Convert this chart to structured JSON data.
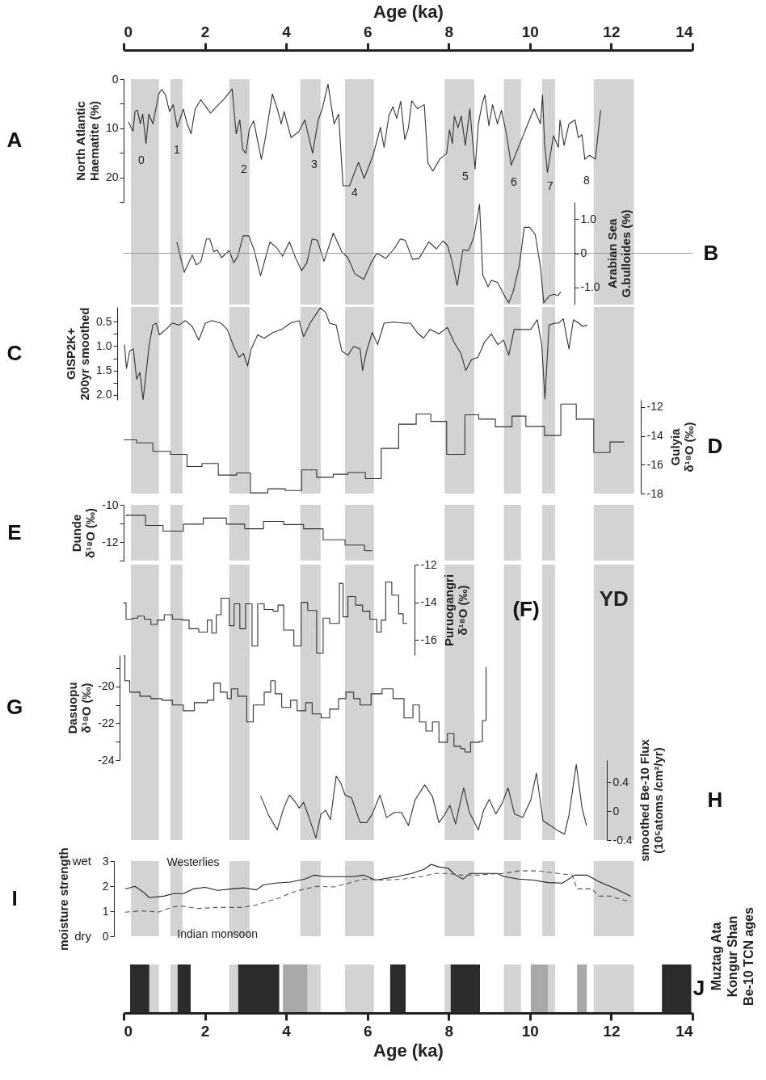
{
  "chart_data": [
    {
      "type": "line",
      "xlabel": "Age (ka)",
      "xlim": [
        0,
        14
      ],
      "xticks": [
        0,
        2,
        4,
        6,
        8,
        10,
        12,
        14
      ],
      "ylabel": "North Atlantic\nHaematite (%)",
      "ylim": [
        25,
        0
      ],
      "yticks": [
        0,
        {
          "value": 5,
          "label": null
        },
        10,
        {
          "value": 15,
          "label": null
        },
        20,
        {
          "value": 25,
          "label": null
        }
      ],
      "x": [
        0.12,
        0.23,
        0.28,
        0.34,
        0.41,
        0.47,
        0.55,
        0.62,
        0.72,
        0.87,
        0.94,
        1.03,
        1.13,
        1.22,
        1.32,
        1.37,
        1.47,
        1.56,
        1.66,
        1.76,
        1.9,
        2.14,
        2.33,
        2.48,
        2.67,
        2.77,
        2.86,
        2.93,
        3.01,
        3.09,
        3.2,
        3.39,
        3.49,
        3.66,
        3.78,
        3.88,
        3.95,
        4.12,
        4.31,
        4.46,
        4.65,
        4.79,
        4.89,
        5.03,
        5.18,
        5.29,
        5.4,
        5.56,
        5.78,
        5.92,
        6.14,
        6.32,
        6.41,
        6.53,
        6.63,
        6.72,
        6.82,
        6.92,
        7.01,
        7.09,
        7.23,
        7.4,
        7.49,
        7.61,
        7.78,
        7.95,
        8.02,
        8.09,
        8.14,
        8.23,
        8.31,
        8.41,
        8.52,
        8.65,
        8.73,
        8.82,
        8.89,
        8.99,
        9.08,
        9.2,
        9.3,
        9.42,
        9.54,
        10.1,
        10.26,
        10.31,
        10.36,
        10.43,
        10.58,
        10.7,
        10.74,
        10.84,
        10.96,
        11.11,
        11.19,
        11.28,
        11.35,
        11.47,
        11.61,
        11.74
      ],
      "values": [
        8.7,
        10.6,
        6.6,
        6.3,
        9.1,
        7.1,
        13.1,
        7.1,
        9.1,
        2.9,
        2.1,
        3.2,
        6.6,
        5.2,
        9.8,
        8.6,
        6.1,
        9.0,
        11.1,
        6.1,
        4.2,
        6.9,
        5.2,
        4.0,
        2.0,
        11.1,
        8.3,
        14.3,
        15.1,
        10.3,
        8.5,
        16.3,
        11.9,
        3.0,
        6.0,
        9.1,
        6.6,
        11.9,
        10.7,
        8.3,
        15.1,
        8.3,
        6.0,
        1.0,
        9.1,
        7.1,
        21.7,
        21.7,
        16.9,
        20.2,
        15.5,
        9.8,
        13.9,
        7.4,
        5.6,
        8.0,
        4.5,
        12.3,
        9.9,
        4.4,
        6.0,
        5.2,
        17.1,
        18.7,
        16.3,
        15.1,
        10.3,
        13.1,
        7.5,
        9.9,
        7.5,
        13.5,
        6.0,
        18.3,
        9.1,
        5.2,
        3.2,
        9.5,
        5.2,
        9.1,
        6.3,
        11.1,
        17.5,
        6.0,
        9.1,
        3.2,
        13.1,
        19.0,
        11.5,
        13.9,
        8.3,
        13.5,
        9.1,
        8.3,
        11.9,
        11.3,
        16.3,
        15.5,
        16.3,
        6.3
      ],
      "color": "#333333",
      "bands": [
        {
          "axis": "x",
          "from": 0.18,
          "to": 0.87,
          "color": "#d3d3d3"
        },
        {
          "axis": "x",
          "from": 1.15,
          "to": 1.45,
          "color": "#d3d3d3"
        },
        {
          "axis": "x",
          "from": 2.6,
          "to": 3.1,
          "color": "#d3d3d3"
        },
        {
          "axis": "x",
          "from": 4.35,
          "to": 4.85,
          "color": "#d3d3d3"
        },
        {
          "axis": "x",
          "from": 5.45,
          "to": 6.16,
          "color": "#d3d3d3"
        },
        {
          "axis": "x",
          "from": 7.9,
          "to": 8.63,
          "color": "#d3d3d3"
        },
        {
          "axis": "x",
          "from": 9.36,
          "to": 9.78,
          "color": "#d3d3d3"
        },
        {
          "axis": "x",
          "from": 10.3,
          "to": 10.62,
          "color": "#d3d3d3"
        },
        {
          "axis": "x",
          "from": 11.57,
          "to": 12.56,
          "color": "#d3d3d3"
        }
      ],
      "annotations": [
        "A",
        "0",
        "1",
        "2",
        "3",
        "4",
        "5",
        "6",
        "7",
        "8"
      ]
    },
    {
      "type": "line",
      "xlim": [
        0,
        14
      ],
      "tick_labels": "y",
      "ylabel": "Arabian Sea\nG.bulloides (%)",
      "ylim": [
        -1.5,
        1.5
      ],
      "yticks": [
        {
          "value": 1,
          "label": "1.0"
        },
        0,
        {
          "value": -1,
          "label": "-1.0"
        }
      ],
      "x": [
        1.31,
        1.49,
        1.69,
        1.79,
        1.9,
        2.04,
        2.12,
        2.22,
        2.3,
        2.41,
        2.6,
        2.71,
        2.81,
        2.94,
        3.08,
        3.21,
        3.37,
        3.6,
        3.76,
        3.91,
        4.08,
        4.23,
        4.38,
        4.51,
        4.64,
        4.77,
        4.93,
        5.16,
        5.37,
        5.52,
        5.69,
        5.91,
        6.09,
        6.23,
        6.45,
        6.66,
        6.81,
        6.93,
        7.11,
        7.27,
        7.51,
        7.7,
        7.86,
        7.97,
        8.08,
        8.21,
        8.35,
        8.49,
        8.62,
        8.76,
        8.84,
        8.97,
        9.05,
        9.2,
        9.4,
        9.48,
        9.59,
        9.74,
        9.86,
        9.99,
        10.13,
        10.26,
        10.34,
        10.48,
        10.6,
        10.69,
        10.76
      ],
      "values": [
        0.33,
        -0.56,
        -0.05,
        -0.34,
        -0.25,
        0.42,
        0.42,
        0.04,
        0.1,
        -0.13,
        0.08,
        -0.28,
        -0.09,
        0.51,
        0.51,
        0.1,
        -0.66,
        0.33,
        0.17,
        -0.09,
        0.33,
        -0.13,
        -0.51,
        -0.28,
        0.42,
        0.38,
        -0.24,
        0.59,
        0.04,
        -0.13,
        -0.6,
        -0.76,
        -0.28,
        0,
        -0.15,
        0.13,
        0.42,
        0.38,
        -0.18,
        -0.15,
        0.33,
        0.13,
        0.36,
        0.23,
        -0.22,
        -0.94,
        0.1,
        0.08,
        0.48,
        1.43,
        -0.64,
        -0.98,
        -0.79,
        -0.85,
        -1.3,
        -1.45,
        -1.11,
        -0.34,
        0.76,
        0.76,
        0.55,
        -0.41,
        -1.45,
        -1.24,
        -1.2,
        -1.24,
        -1.13
      ],
      "color": "#333333",
      "ref_lines": [
        {
          "axis": "y",
          "value": 0,
          "color": "#999999"
        }
      ],
      "bands": [
        {
          "axis": "x",
          "from": 0.18,
          "to": 0.87,
          "color": "#d3d3d3"
        },
        {
          "axis": "x",
          "from": 1.15,
          "to": 1.45,
          "color": "#d3d3d3"
        },
        {
          "axis": "x",
          "from": 2.6,
          "to": 3.1,
          "color": "#d3d3d3"
        },
        {
          "axis": "x",
          "from": 4.35,
          "to": 4.85,
          "color": "#d3d3d3"
        },
        {
          "axis": "x",
          "from": 5.45,
          "to": 6.16,
          "color": "#d3d3d3"
        },
        {
          "axis": "x",
          "from": 7.9,
          "to": 8.63,
          "color": "#d3d3d3"
        },
        {
          "axis": "x",
          "from": 9.36,
          "to": 9.78,
          "color": "#d3d3d3"
        },
        {
          "axis": "x",
          "from": 10.3,
          "to": 10.62,
          "color": "#d3d3d3"
        },
        {
          "axis": "x",
          "from": 11.57,
          "to": 12.56,
          "color": "#d3d3d3"
        }
      ],
      "annotations": [
        "B"
      ]
    },
    {
      "type": "line",
      "xlim": [
        0,
        14
      ],
      "tick_labels": "y",
      "ylabel": "GISP2K+\n200yr smoothed",
      "ylim": [
        2.1,
        0.2
      ],
      "yticks": [
        {
          "value": 0.5,
          "label": "0.5"
        },
        {
          "value": 0.75,
          "label": null
        },
        {
          "value": 1,
          "label": "1.0"
        },
        {
          "value": 1.25,
          "label": null
        },
        {
          "value": 1.5,
          "label": "1.5"
        },
        {
          "value": 1.75,
          "label": null
        },
        {
          "value": 2,
          "label": "2.0"
        }
      ],
      "x": [
        0.02,
        0.07,
        0.15,
        0.24,
        0.32,
        0.4,
        0.48,
        0.56,
        0.63,
        0.72,
        0.8,
        0.88,
        1.04,
        1.2,
        1.36,
        1.52,
        1.69,
        1.85,
        2.01,
        2.17,
        2.39,
        2.55,
        2.71,
        2.84,
        2.95,
        3.05,
        3.14,
        3.3,
        3.46,
        3.68,
        3.89,
        4.11,
        4.32,
        4.43,
        4.59,
        4.75,
        4.84,
        4.97,
        5.07,
        5.23,
        5.37,
        5.52,
        5.66,
        5.82,
        5.88,
        5.98,
        6.12,
        6.25,
        6.41,
        6.63,
        6.9,
        7.06,
        7.22,
        7.38,
        7.54,
        7.76,
        7.97,
        8.13,
        8.3,
        8.42,
        8.56,
        8.72,
        8.88,
        9.05,
        9.21,
        9.35,
        9.48,
        9.61,
        9.8,
        10.02,
        10.18,
        10.29,
        10.37,
        10.47,
        10.61,
        10.71,
        10.82,
        10.96,
        11.07,
        11.2,
        11.3,
        11.41
      ],
      "values": [
        0.97,
        1.46,
        1.1,
        1.06,
        1.68,
        1.54,
        2.1,
        1.5,
        0.97,
        0.57,
        0.53,
        0.77,
        0.66,
        0.53,
        0.57,
        0.48,
        0.6,
        0.88,
        0.53,
        0.48,
        0.53,
        0.66,
        1.01,
        1.23,
        1.15,
        1.41,
        1.06,
        0.77,
        0.84,
        0.72,
        0.66,
        0.53,
        0.48,
        0.81,
        0.53,
        0.33,
        0.22,
        0.31,
        0.53,
        0.57,
        1.1,
        1.19,
        1.01,
        1.06,
        1.5,
        1.1,
        0.72,
        0.97,
        0.53,
        0.51,
        0.53,
        0.53,
        0.72,
        0.84,
        0.66,
        0.75,
        0.62,
        0.92,
        1.15,
        1.5,
        1.28,
        1.23,
        0.92,
        0.75,
        0.97,
        0.88,
        1.19,
        0.66,
        0.66,
        0.66,
        0.46,
        0.97,
        2.08,
        0.57,
        0.53,
        0.53,
        0.44,
        1.06,
        0.46,
        0.53,
        0.6,
        0.57
      ],
      "color": "#333333",
      "bands": [
        {
          "axis": "x",
          "from": 0.18,
          "to": 0.87,
          "color": "#d3d3d3"
        },
        {
          "axis": "x",
          "from": 1.15,
          "to": 1.45,
          "color": "#d3d3d3"
        },
        {
          "axis": "x",
          "from": 2.6,
          "to": 3.1,
          "color": "#d3d3d3"
        },
        {
          "axis": "x",
          "from": 4.35,
          "to": 4.85,
          "color": "#d3d3d3"
        },
        {
          "axis": "x",
          "from": 5.45,
          "to": 6.16,
          "color": "#d3d3d3"
        },
        {
          "axis": "x",
          "from": 7.9,
          "to": 8.63,
          "color": "#d3d3d3"
        },
        {
          "axis": "x",
          "from": 9.36,
          "to": 9.78,
          "color": "#d3d3d3"
        },
        {
          "axis": "x",
          "from": 10.3,
          "to": 10.62,
          "color": "#d3d3d3"
        },
        {
          "axis": "x",
          "from": 11.57,
          "to": 12.56,
          "color": "#d3d3d3"
        }
      ],
      "annotations": [
        "C"
      ]
    },
    {
      "type": "step",
      "xlim": [
        0,
        14
      ],
      "tick_labels": "y",
      "ylabel": "Gulyia\nδ¹⁸O (‰)",
      "ylim": [
        -18,
        -11.5
      ],
      "yticks": [
        -12,
        -14,
        -16,
        -18
      ],
      "x": [
        0,
        0.32,
        0.72,
        1.15,
        1.56,
        1.93,
        2.33,
        2.78,
        3.12,
        3.55,
        3.98,
        4.38,
        4.75,
        5.16,
        5.52,
        5.95,
        6.34,
        6.77,
        7.2,
        7.56,
        7.95,
        8.4,
        8.74,
        9.15,
        9.56,
        9.9,
        10.36,
        10.76,
        11.14,
        11.57,
        11.97,
        12.32
      ],
      "values": [
        -14.27,
        -14.48,
        -15.07,
        -15.28,
        -16.12,
        -15.91,
        -16.72,
        -16.57,
        -17.95,
        -17.67,
        -17.79,
        -16.36,
        -16.87,
        -16.66,
        -16.54,
        -16.96,
        -14.87,
        -13.19,
        -12.48,
        -12.99,
        -15.28,
        -12.54,
        -12.84,
        -13.37,
        -12.63,
        -13.34,
        -13.97,
        -11.79,
        -12.84,
        -15.16,
        -14.42,
        -14.42
      ],
      "color": "#333333",
      "bands": [
        {
          "axis": "x",
          "from": 0.18,
          "to": 0.87,
          "color": "#d3d3d3"
        },
        {
          "axis": "x",
          "from": 1.15,
          "to": 1.45,
          "color": "#d3d3d3"
        },
        {
          "axis": "x",
          "from": 2.6,
          "to": 3.1,
          "color": "#d3d3d3"
        },
        {
          "axis": "x",
          "from": 4.35,
          "to": 4.85,
          "color": "#d3d3d3"
        },
        {
          "axis": "x",
          "from": 5.45,
          "to": 6.16,
          "color": "#d3d3d3"
        },
        {
          "axis": "x",
          "from": 7.9,
          "to": 8.63,
          "color": "#d3d3d3"
        },
        {
          "axis": "x",
          "from": 9.36,
          "to": 9.78,
          "color": "#d3d3d3"
        },
        {
          "axis": "x",
          "from": 10.3,
          "to": 10.62,
          "color": "#d3d3d3"
        },
        {
          "axis": "x",
          "from": 11.57,
          "to": 12.56,
          "color": "#d3d3d3"
        }
      ],
      "annotations": [
        "D"
      ]
    },
    {
      "type": "step",
      "xlim": [
        0,
        14
      ],
      "tick_labels": "y",
      "ylabel": "Dunde\nδ¹⁸O (‰)",
      "ylim": [
        -13,
        -10
      ],
      "yticks": [
        -10,
        {
          "value": -11,
          "label": null
        },
        -12,
        {
          "value": -13,
          "label": null
        }
      ],
      "x": [
        0.05,
        0.54,
        0.97,
        1.47,
        1.96,
        2.53,
        2.98,
        3.44,
        3.94,
        4.43,
        4.91,
        5.45,
        5.93,
        6.12
      ],
      "values": [
        -10.56,
        -11.11,
        -11.41,
        -11.04,
        -10.71,
        -11.04,
        -11.29,
        -10.89,
        -11.06,
        -11.29,
        -11.88,
        -12.16,
        -12.47,
        -12.47
      ],
      "color": "#333333",
      "bands": [
        {
          "axis": "x",
          "from": 0.18,
          "to": 0.87,
          "color": "#d3d3d3"
        },
        {
          "axis": "x",
          "from": 1.15,
          "to": 1.45,
          "color": "#d3d3d3"
        },
        {
          "axis": "x",
          "from": 2.6,
          "to": 3.1,
          "color": "#d3d3d3"
        },
        {
          "axis": "x",
          "from": 4.35,
          "to": 4.85,
          "color": "#d3d3d3"
        },
        {
          "axis": "x",
          "from": 5.45,
          "to": 6.16,
          "color": "#d3d3d3"
        },
        {
          "axis": "x",
          "from": 7.9,
          "to": 8.63,
          "color": "#d3d3d3"
        },
        {
          "axis": "x",
          "from": 9.36,
          "to": 9.78,
          "color": "#d3d3d3"
        },
        {
          "axis": "x",
          "from": 10.3,
          "to": 10.62,
          "color": "#d3d3d3"
        },
        {
          "axis": "x",
          "from": 11.57,
          "to": 12.56,
          "color": "#d3d3d3"
        }
      ],
      "annotations": [
        "E"
      ]
    },
    {
      "type": "step",
      "xlim": [
        0,
        14
      ],
      "tick_labels": "y",
      "ylabel": "Puruogangri\nδ¹⁸O (‰)",
      "ylim": [
        -16.8,
        -12
      ],
      "yticks": [
        -12,
        -14,
        -16
      ],
      "x": [
        0,
        0.06,
        0.22,
        0.35,
        0.51,
        0.67,
        0.83,
        1.0,
        1.2,
        1.44,
        1.61,
        1.85,
        2.06,
        2.17,
        2.28,
        2.4,
        2.6,
        2.72,
        2.86,
        3.0,
        3.16,
        3.3,
        3.46,
        3.68,
        3.8,
        3.94,
        4.08,
        4.19,
        4.37,
        4.53,
        4.75,
        4.91,
        5.07,
        5.31,
        5.4,
        5.52,
        5.71,
        5.88,
        6.06,
        6.23,
        6.34,
        6.45,
        6.6,
        6.77,
        6.88,
        6.98
      ],
      "values": [
        -14.03,
        -14.89,
        -14.84,
        -14.73,
        -14.89,
        -15.17,
        -14.94,
        -14.66,
        -14.89,
        -14.94,
        -15.4,
        -15.58,
        -14.94,
        -15.63,
        -14.66,
        -13.78,
        -15.24,
        -14.08,
        -15.4,
        -14.08,
        -16.32,
        -14.08,
        -14.38,
        -14.47,
        -14.15,
        -15.47,
        -15.47,
        -16.32,
        -14.01,
        -14.43,
        -16.69,
        -14.84,
        -15.12,
        -12.99,
        -14.77,
        -13.69,
        -14.15,
        -14.47,
        -14.89,
        -15.58,
        -14.94,
        -12.92,
        -13.62,
        -14.61,
        -15.12,
        -15.12
      ],
      "color": "#333333",
      "bands": [
        {
          "axis": "x",
          "from": 0.18,
          "to": 0.87,
          "color": "#d3d3d3"
        },
        {
          "axis": "x",
          "from": 1.15,
          "to": 1.45,
          "color": "#d3d3d3"
        },
        {
          "axis": "x",
          "from": 2.6,
          "to": 3.1,
          "color": "#d3d3d3"
        },
        {
          "axis": "x",
          "from": 4.35,
          "to": 4.85,
          "color": "#d3d3d3"
        },
        {
          "axis": "x",
          "from": 5.45,
          "to": 6.16,
          "color": "#d3d3d3"
        },
        {
          "axis": "x",
          "from": 7.9,
          "to": 8.63,
          "color": "#d3d3d3"
        },
        {
          "axis": "x",
          "from": 9.36,
          "to": 9.78,
          "color": "#d3d3d3"
        },
        {
          "axis": "x",
          "from": 10.3,
          "to": 10.62,
          "color": "#d3d3d3"
        },
        {
          "axis": "x",
          "from": 11.57,
          "to": 12.56,
          "color": "#d3d3d3",
          "label": "YD"
        }
      ],
      "annotations": [
        "(F)"
      ]
    },
    {
      "type": "step",
      "xlim": [
        0,
        14
      ],
      "tick_labels": "y",
      "ylabel": "Dasuopu\nδ¹⁸O (‰)",
      "ylim": [
        -24,
        -18.3
      ],
      "yticks": [
        {
          "value": -19,
          "label": null
        },
        -20,
        {
          "value": -21,
          "label": null
        },
        -22,
        {
          "value": -23,
          "label": null
        },
        -24
      ],
      "x": [
        0,
        0.03,
        0.15,
        0.4,
        0.67,
        0.94,
        1.2,
        1.47,
        1.74,
        2.06,
        2.22,
        2.38,
        2.55,
        2.65,
        2.81,
        3.03,
        3.19,
        3.46,
        3.62,
        3.73,
        3.89,
        4.11,
        4.27,
        4.48,
        4.64,
        4.86,
        5.07,
        5.29,
        5.47,
        5.66,
        5.82,
        6.09,
        6.36,
        6.63,
        6.9,
        7.12,
        7.28,
        7.44,
        7.6,
        7.76,
        7.97,
        8.13,
        8.3,
        8.4,
        8.54,
        8.75,
        8.83,
        8.92
      ],
      "values": [
        -18.33,
        -19.69,
        -20.31,
        -20.53,
        -20.66,
        -20.75,
        -21.01,
        -21.32,
        -20.88,
        -20.75,
        -19.82,
        -20.31,
        -20.66,
        -20.13,
        -20.53,
        -21.93,
        -21.01,
        -20.31,
        -19.69,
        -20.4,
        -21.14,
        -20.75,
        -21.32,
        -20.88,
        -21.49,
        -21.71,
        -21.23,
        -20.66,
        -20.31,
        -20.66,
        -21.01,
        -20.4,
        -20.13,
        -20.66,
        -21.71,
        -21.01,
        -21.93,
        -22.42,
        -21.93,
        -23.03,
        -22.55,
        -23.25,
        -23.38,
        -23.56,
        -23.03,
        -22.99,
        -21.85,
        -18.95
      ],
      "color": "#333333",
      "bands": [
        {
          "axis": "x",
          "from": 0.18,
          "to": 0.87,
          "color": "#d3d3d3"
        },
        {
          "axis": "x",
          "from": 1.15,
          "to": 1.45,
          "color": "#d3d3d3"
        },
        {
          "axis": "x",
          "from": 2.6,
          "to": 3.1,
          "color": "#d3d3d3"
        },
        {
          "axis": "x",
          "from": 4.35,
          "to": 4.85,
          "color": "#d3d3d3"
        },
        {
          "axis": "x",
          "from": 5.45,
          "to": 6.16,
          "color": "#d3d3d3"
        },
        {
          "axis": "x",
          "from": 7.9,
          "to": 8.63,
          "color": "#d3d3d3"
        },
        {
          "axis": "x",
          "from": 9.36,
          "to": 9.78,
          "color": "#d3d3d3"
        },
        {
          "axis": "x",
          "from": 10.3,
          "to": 10.62,
          "color": "#d3d3d3"
        },
        {
          "axis": "x",
          "from": 11.57,
          "to": 12.56,
          "color": "#d3d3d3"
        }
      ],
      "annotations": [
        "G"
      ]
    },
    {
      "type": "line",
      "xlim": [
        0,
        14
      ],
      "tick_labels": "y",
      "ylabel": "smoothed Be-10 Flux\n(10⁵atoms /cm²/yr)",
      "ylim": [
        -0.4,
        0.7
      ],
      "yticks": [
        -0.4,
        0,
        0.4
      ],
      "x": [
        3.37,
        3.57,
        3.78,
        3.94,
        4.08,
        4.23,
        4.32,
        4.43,
        4.59,
        4.73,
        4.86,
        4.97,
        5.09,
        5.23,
        5.34,
        5.45,
        5.61,
        5.82,
        5.98,
        6.12,
        6.31,
        6.47,
        6.66,
        6.84,
        7.01,
        7.17,
        7.41,
        7.6,
        7.76,
        7.89,
        8.03,
        8.17,
        8.27,
        8.37,
        8.51,
        8.73,
        8.86,
        9.0,
        9.16,
        9.32,
        9.46,
        9.62,
        9.82,
        10.02,
        10.16,
        10.32,
        10.5,
        10.66,
        10.85,
        10.96,
        11.14,
        11.28,
        11.39
      ],
      "values": [
        0.21,
        -0.06,
        -0.26,
        0.04,
        0.22,
        0.12,
        0.04,
        0.12,
        -0.13,
        -0.37,
        -0.04,
        0.01,
        -0.12,
        0.48,
        0.39,
        0.22,
        0.18,
        -0.16,
        -0.16,
        -0.04,
        0.22,
        -0.09,
        -0.02,
        -0.02,
        -0.2,
        0.15,
        0.36,
        0.2,
        -0.16,
        -0.06,
        0.08,
        -0.18,
        0.08,
        0.32,
        -0.02,
        -0.26,
        0.01,
        0.16,
        -0.04,
        0.11,
        0.32,
        -0.04,
        -0.09,
        0.15,
        0.52,
        -0.13,
        -0.2,
        -0.26,
        -0.32,
        -0.06,
        0.64,
        0.05,
        -0.2
      ],
      "color": "#333333",
      "bands": [
        {
          "axis": "x",
          "from": 0.18,
          "to": 0.87,
          "color": "#d3d3d3"
        },
        {
          "axis": "x",
          "from": 1.15,
          "to": 1.45,
          "color": "#d3d3d3"
        },
        {
          "axis": "x",
          "from": 2.6,
          "to": 3.1,
          "color": "#d3d3d3"
        },
        {
          "axis": "x",
          "from": 4.35,
          "to": 4.85,
          "color": "#d3d3d3"
        },
        {
          "axis": "x",
          "from": 5.45,
          "to": 6.16,
          "color": "#d3d3d3"
        },
        {
          "axis": "x",
          "from": 7.9,
          "to": 8.63,
          "color": "#d3d3d3"
        },
        {
          "axis": "x",
          "from": 9.36,
          "to": 9.78,
          "color": "#d3d3d3"
        },
        {
          "axis": "x",
          "from": 10.3,
          "to": 10.62,
          "color": "#d3d3d3"
        },
        {
          "axis": "x",
          "from": 11.57,
          "to": 12.56,
          "color": "#d3d3d3"
        }
      ],
      "annotations": [
        "H"
      ]
    },
    {
      "type": "line",
      "xlim": [
        0,
        14
      ],
      "tick_labels": "y",
      "ylabel": "moisture strength",
      "ylim": [
        0,
        3
      ],
      "yticks": [
        0,
        1,
        2,
        3
      ],
      "series": [
        {
          "name": "Westerlies",
          "color": "#222222",
          "line_style": "solid",
          "x": [
            0.04,
            0.28,
            0.51,
            0.63,
            0.99,
            1.23,
            1.47,
            1.71,
            2.01,
            2.31,
            2.67,
            2.97,
            3.27,
            3.44,
            3.74,
            4.1,
            4.46,
            4.7,
            4.94,
            5.3,
            5.66,
            5.9,
            6.2,
            6.5,
            6.73,
            7.09,
            7.39,
            7.57,
            7.75,
            7.99,
            8.17,
            8.35,
            8.53,
            8.89,
            9.19,
            9.37,
            9.72,
            10.08,
            10.44,
            10.8,
            11.1,
            11.4,
            11.7,
            12.12,
            12.48
          ],
          "values": [
            1.89,
            1.99,
            1.73,
            1.54,
            1.6,
            1.7,
            1.7,
            1.89,
            1.95,
            1.83,
            1.89,
            1.93,
            1.85,
            2.05,
            2.12,
            2.16,
            2.28,
            2.44,
            2.38,
            2.38,
            2.38,
            2.44,
            2.24,
            2.32,
            2.38,
            2.51,
            2.67,
            2.87,
            2.77,
            2.71,
            2.44,
            2.28,
            2.51,
            2.51,
            2.51,
            2.38,
            2.28,
            2.24,
            2.14,
            2.12,
            2.44,
            2.44,
            2.18,
            1.89,
            1.6
          ]
        },
        {
          "name": "Indian monsoon",
          "color": "#555555",
          "line_style": "dashed",
          "x": [
            0.04,
            0.39,
            0.87,
            1.17,
            1.41,
            1.83,
            2.31,
            2.91,
            3.27,
            3.56,
            3.86,
            4.1,
            4.46,
            4.76,
            5.18,
            5.54,
            5.9,
            6.38,
            6.86,
            7.33,
            7.69,
            7.99,
            8.29,
            8.71,
            9.01,
            9.37,
            9.72,
            10.2,
            10.68,
            11.04,
            11.16,
            11.52,
            11.7,
            12.0,
            12.24,
            12.48
          ],
          "values": [
            0.96,
            1.01,
            0.97,
            1.15,
            1.21,
            1.11,
            1.15,
            1.15,
            1.25,
            1.4,
            1.54,
            1.73,
            1.89,
            1.99,
            1.97,
            2.12,
            2.28,
            2.24,
            2.28,
            2.38,
            2.51,
            2.51,
            2.44,
            2.44,
            2.48,
            2.51,
            2.61,
            2.61,
            2.51,
            2.44,
            1.89,
            1.89,
            1.6,
            1.6,
            1.46,
            1.4
          ]
        }
      ],
      "bands": [
        {
          "axis": "x",
          "from": 0.18,
          "to": 0.87,
          "color": "#d3d3d3"
        },
        {
          "axis": "x",
          "from": 1.15,
          "to": 1.45,
          "color": "#d3d3d3"
        },
        {
          "axis": "x",
          "from": 2.6,
          "to": 3.1,
          "color": "#d3d3d3"
        },
        {
          "axis": "x",
          "from": 4.35,
          "to": 4.85,
          "color": "#d3d3d3"
        },
        {
          "axis": "x",
          "from": 5.45,
          "to": 6.16,
          "color": "#d3d3d3"
        },
        {
          "axis": "x",
          "from": 7.9,
          "to": 8.63,
          "color": "#d3d3d3"
        },
        {
          "axis": "x",
          "from": 9.36,
          "to": 9.78,
          "color": "#d3d3d3"
        },
        {
          "axis": "x",
          "from": 10.3,
          "to": 10.62,
          "color": "#d3d3d3"
        },
        {
          "axis": "x",
          "from": 11.57,
          "to": 12.56,
          "color": "#d3d3d3"
        }
      ],
      "annotations": [
        "I",
        "wet",
        "dry"
      ]
    },
    {
      "type": "bar",
      "orientation": "horizontal",
      "categories": [
        null
      ],
      "xlabel": "Age (ka)",
      "xlim": [
        0,
        14
      ],
      "xticks": [
        0,
        2,
        4,
        6,
        8,
        10,
        12,
        14
      ],
      "tick_labels": "x",
      "ylabel": "Muztag Ata\nKongur Shan\nBe-10 TCN ages",
      "bands": [
        {
          "axis": "x",
          "from": 0.18,
          "to": 0.87,
          "color": "#d3d3d3"
        },
        {
          "axis": "x",
          "from": 1.15,
          "to": 1.45,
          "color": "#d3d3d3"
        },
        {
          "axis": "x",
          "from": 2.6,
          "to": 3.1,
          "color": "#d3d3d3"
        },
        {
          "axis": "x",
          "from": 4.35,
          "to": 4.85,
          "color": "#d3d3d3"
        },
        {
          "axis": "x",
          "from": 5.45,
          "to": 6.16,
          "color": "#d3d3d3"
        },
        {
          "axis": "x",
          "from": 7.9,
          "to": 8.63,
          "color": "#d3d3d3"
        },
        {
          "axis": "x",
          "from": 9.36,
          "to": 9.78,
          "color": "#d3d3d3"
        },
        {
          "axis": "x",
          "from": 10.3,
          "to": 10.62,
          "color": "#d3d3d3"
        },
        {
          "axis": "x",
          "from": 11.57,
          "to": 12.56,
          "color": "#d3d3d3"
        }
      ],
      "series": [
        {
          "color": "#2b2b2b",
          "base": [
            0.16
          ],
          "values": [
            0.47
          ]
        },
        {
          "color": "#2b2b2b",
          "base": [
            1.33
          ],
          "values": [
            0.32
          ]
        },
        {
          "color": "#2b2b2b",
          "base": [
            2.82
          ],
          "values": [
            1.01
          ]
        },
        {
          "color": "#a8a8a8",
          "base": [
            3.92
          ],
          "values": [
            0.6
          ]
        },
        {
          "color": "#2b2b2b",
          "base": [
            6.56
          ],
          "values": [
            0.38
          ]
        },
        {
          "color": "#2b2b2b",
          "base": [
            8.05
          ],
          "values": [
            0.72
          ]
        },
        {
          "color": "#a8a8a8",
          "base": [
            10.02
          ],
          "values": [
            0.42
          ]
        },
        {
          "color": "#a8a8a8",
          "base": [
            11.16
          ],
          "values": [
            0.24
          ]
        },
        {
          "color": "#2b2b2b",
          "base": [
            13.25
          ],
          "values": [
            0.72
          ]
        }
      ],
      "annotations": [
        "J"
      ]
    }
  ]
}
